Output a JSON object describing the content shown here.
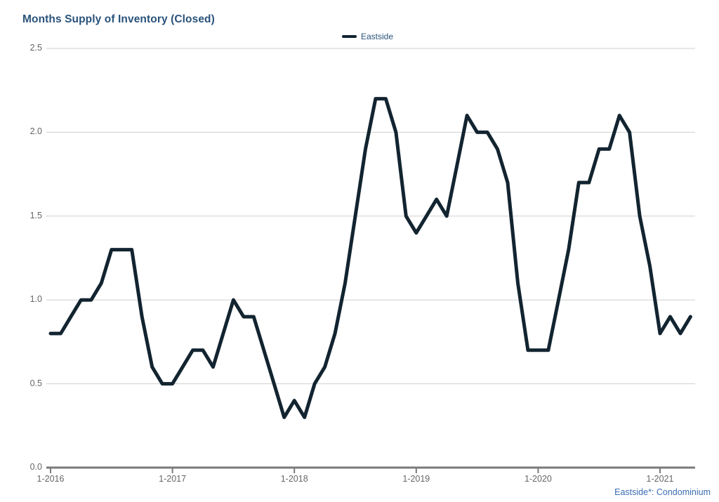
{
  "header": {
    "title": "Months Supply of Inventory (Closed)"
  },
  "legend": {
    "position": "top-center",
    "items": [
      {
        "label": "Eastside",
        "color": "#122430"
      }
    ]
  },
  "footnote": {
    "text": "Eastside*: Condominium"
  },
  "chart_data": {
    "type": "line",
    "title": "Months Supply of Inventory (Closed)",
    "xlabel": "",
    "ylabel": "",
    "x_interval": "monthly",
    "x_start_label": "1-2016",
    "x_end_label": "4-2021",
    "x_tick_labels": [
      "1-2016",
      "1-2017",
      "1-2018",
      "1-2019",
      "1-2020",
      "1-2021"
    ],
    "x_tick_month_indexes": [
      0,
      12,
      24,
      36,
      48,
      60
    ],
    "y_ticks": [
      "0.0",
      "0.5",
      "1.0",
      "1.5",
      "2.0",
      "2.5"
    ],
    "ylim": [
      0,
      2.5
    ],
    "grid": "horizontal",
    "grid_color": "#cfcfcf",
    "axis_color": "#7a7a7a",
    "tick_label_color": "#666666",
    "legend_position": "top-center",
    "series": [
      {
        "name": "Eastside",
        "color": "#122430",
        "values": [
          0.8,
          0.8,
          0.9,
          1.0,
          1.0,
          1.1,
          1.3,
          1.3,
          1.3,
          0.9,
          0.6,
          0.5,
          0.5,
          0.6,
          0.7,
          0.7,
          0.6,
          0.8,
          1.0,
          0.9,
          0.9,
          0.7,
          0.5,
          0.3,
          0.4,
          0.3,
          0.5,
          0.6,
          0.8,
          1.1,
          1.5,
          1.9,
          2.2,
          2.2,
          2.0,
          1.5,
          1.4,
          1.5,
          1.6,
          1.5,
          1.8,
          2.1,
          2.0,
          2.0,
          1.9,
          1.7,
          1.1,
          0.7,
          0.7,
          0.7,
          1.0,
          1.3,
          1.7,
          1.7,
          1.9,
          1.9,
          2.1,
          2.0,
          1.5,
          1.2,
          0.8,
          0.9,
          0.8,
          0.9
        ]
      }
    ]
  }
}
